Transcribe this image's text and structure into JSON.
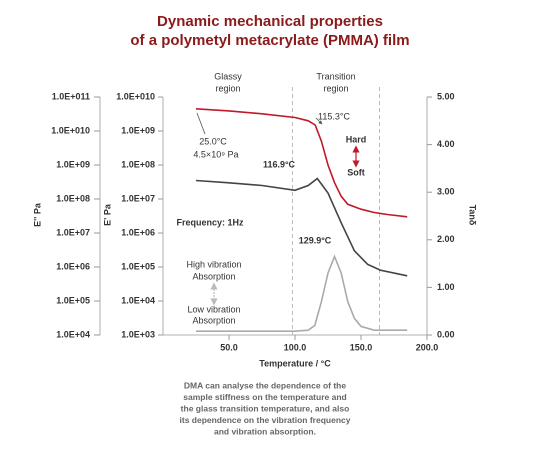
{
  "chart_data": {
    "type": "line",
    "title": [
      "Dynamic mechanical properties",
      "of a polymetyl metacrylate (PMMA) film"
    ],
    "xlabel": "Temperature / °C",
    "ylabel": "E'' Pa",
    "y2label": "E' Pa",
    "y3label": "Tanδ",
    "xlim": [
      0,
      200
    ],
    "xticks": [
      {
        "value": 50,
        "label": "50.0"
      },
      {
        "value": 100,
        "label": "100.0"
      },
      {
        "value": 150,
        "label": "150.0"
      },
      {
        "value": 200,
        "label": "200.0"
      }
    ],
    "ylim": [
      10000,
      100000000000
    ],
    "yscale": "log",
    "yticks": [
      {
        "value": 100000000000,
        "label": "1.0E+011"
      },
      {
        "value": 10000000000,
        "label": "1.0E+010"
      },
      {
        "value": 1000000000,
        "label": "1.0E+09"
      },
      {
        "value": 100000000,
        "label": "1.0E+08"
      },
      {
        "value": 10000000,
        "label": "1.0E+07"
      },
      {
        "value": 1000000,
        "label": "1.0E+06"
      },
      {
        "value": 100000,
        "label": "1.0E+05"
      },
      {
        "value": 10000,
        "label": "1.0E+04"
      }
    ],
    "y2lim": [
      1000,
      10000000000
    ],
    "y2scale": "log",
    "y2ticks": [
      {
        "value": 10000000000,
        "label": "1.0E+010"
      },
      {
        "value": 1000000000,
        "label": "1.0E+09"
      },
      {
        "value": 100000000,
        "label": "1.0E+08"
      },
      {
        "value": 10000000,
        "label": "1.0E+07"
      },
      {
        "value": 1000000,
        "label": "1.0E+06"
      },
      {
        "value": 100000,
        "label": "1.0E+05"
      },
      {
        "value": 10000,
        "label": "1.0E+04"
      },
      {
        "value": 1000,
        "label": "1.0E+03"
      }
    ],
    "y3lim": [
      0,
      5
    ],
    "y3ticks": [
      {
        "value": 5,
        "label": "5.00"
      },
      {
        "value": 4,
        "label": "4.00"
      },
      {
        "value": 3,
        "label": "3.00"
      },
      {
        "value": 2,
        "label": "2.00"
      },
      {
        "value": 1,
        "label": "1.00"
      },
      {
        "value": 0,
        "label": "0.00"
      }
    ],
    "region_lines": [
      98,
      164
    ],
    "series": [
      {
        "axis": "y2",
        "color": "#c0192c",
        "x": [
          25,
          50,
          75,
          100,
          110,
          115.3,
          120,
          125,
          130,
          135,
          140,
          150,
          160,
          170,
          185
        ],
        "values": [
          4500000000,
          3900000000,
          3200000000,
          2500000000,
          2000000000,
          1500000000,
          500000000,
          100000000,
          30000000,
          12000000,
          7000000,
          5000000,
          4000000,
          3500000,
          3000000
        ]
      },
      {
        "axis": "y",
        "color": "#444444",
        "x": [
          25,
          50,
          75,
          100,
          110,
          116.9,
          125,
          135,
          145,
          155,
          165,
          185
        ],
        "values": [
          350000000,
          300000000,
          250000000,
          180000000,
          250000000,
          400000000,
          150000000,
          20000000,
          3000000,
          1200000,
          800000,
          550000
        ]
      },
      {
        "axis": "y3",
        "color": "#aaaaaa",
        "x": [
          25,
          100,
          110,
          115,
          120,
          125,
          129.9,
          135,
          140,
          145,
          150,
          160,
          185
        ],
        "values": [
          0.08,
          0.08,
          0.1,
          0.2,
          0.7,
          1.3,
          1.65,
          1.3,
          0.7,
          0.35,
          0.18,
          0.1,
          0.1
        ]
      }
    ],
    "annotations": [
      "Glassy",
      "region",
      "Transition",
      "region",
      "25.0°C",
      "4.5×10⁹ Pa",
      "115.3°C",
      "Hard",
      "Soft",
      "116.9°C",
      "Frequency: 1Hz",
      "129.9°C",
      "High vibration",
      "Absorption",
      "Low vibration",
      "Absorption"
    ],
    "caption": [
      "DMA can analyse the dependence of the",
      "sample stiffness on the temperature and",
      "the glass transition temperature, and also",
      "its dependence on the vibration frequency",
      "and vibration absorption."
    ]
  }
}
